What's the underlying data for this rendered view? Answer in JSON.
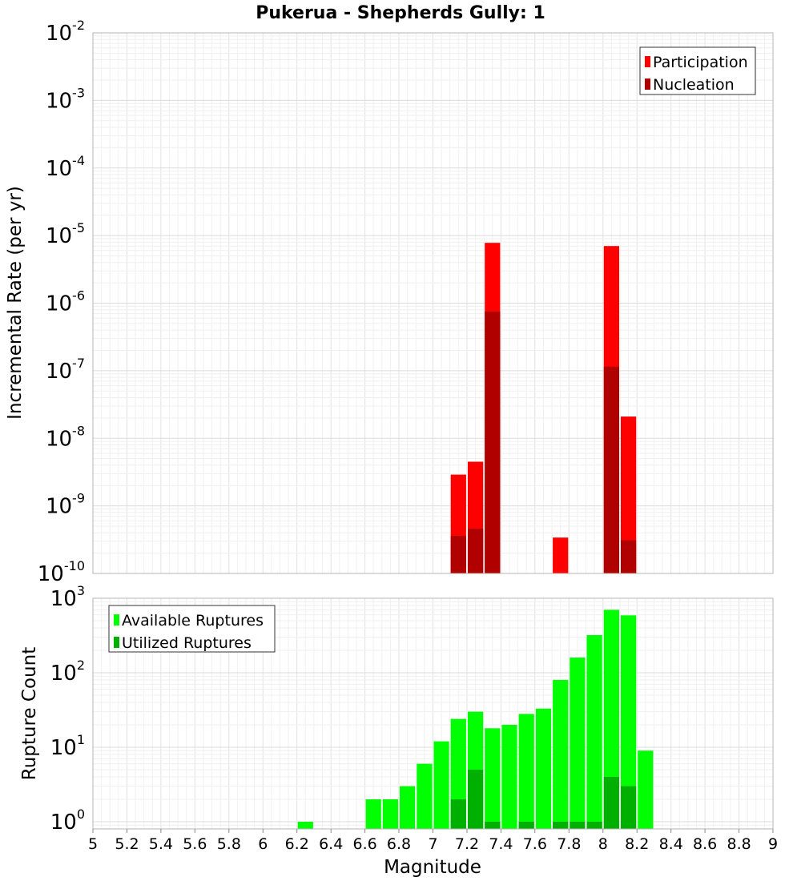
{
  "title": "Pukerua - Shepherds Gully: 1",
  "chart_data": [
    {
      "type": "bar",
      "panel": "top",
      "scale": "log",
      "ylabel": "Incremental Rate (per yr)",
      "xlabel": "",
      "xlim": [
        5,
        9
      ],
      "ylim_exponents": [
        -10,
        -2
      ],
      "grid": true,
      "legend_position": "top-right",
      "bin_width": 0.1,
      "series": [
        {
          "name": "Participation",
          "color": "#ff0000",
          "points": [
            {
              "x": 7.15,
              "y": 2.9e-09
            },
            {
              "x": 7.25,
              "y": 4.5e-09
            },
            {
              "x": 7.35,
              "y": 7.8e-06
            },
            {
              "x": 7.75,
              "y": 3.4e-10
            },
            {
              "x": 8.05,
              "y": 7e-06
            },
            {
              "x": 8.15,
              "y": 2.1e-08
            }
          ]
        },
        {
          "name": "Nucleation",
          "color": "#b00000",
          "points": [
            {
              "x": 7.15,
              "y": 3.6e-10
            },
            {
              "x": 7.25,
              "y": 4.6e-10
            },
            {
              "x": 7.35,
              "y": 7.5e-07
            },
            {
              "x": 8.05,
              "y": 1.15e-07
            },
            {
              "x": 8.15,
              "y": 3.1e-10
            }
          ]
        }
      ]
    },
    {
      "type": "bar",
      "panel": "bottom",
      "scale": "log",
      "ylabel": "Rupture Count",
      "xlabel": "Magnitude",
      "xlim": [
        5,
        9
      ],
      "ylim": [
        0.8,
        1000
      ],
      "ylim_exponents": [
        0,
        3
      ],
      "grid": true,
      "legend_position": "top-left",
      "bin_width": 0.1,
      "xticks": [
        "5",
        "5.2",
        "5.4",
        "5.6",
        "5.8",
        "6",
        "6.2",
        "6.4",
        "6.6",
        "6.8",
        "7",
        "7.2",
        "7.4",
        "7.6",
        "7.8",
        "8",
        "8.2",
        "8.4",
        "8.6",
        "8.8",
        "9"
      ],
      "series": [
        {
          "name": "Available Ruptures",
          "color": "#00ff00",
          "points": [
            {
              "x": 6.25,
              "y": 1
            },
            {
              "x": 6.65,
              "y": 2
            },
            {
              "x": 6.75,
              "y": 2
            },
            {
              "x": 6.85,
              "y": 3
            },
            {
              "x": 6.95,
              "y": 6
            },
            {
              "x": 7.05,
              "y": 12
            },
            {
              "x": 7.15,
              "y": 24
            },
            {
              "x": 7.25,
              "y": 30
            },
            {
              "x": 7.35,
              "y": 18
            },
            {
              "x": 7.45,
              "y": 20
            },
            {
              "x": 7.55,
              "y": 28
            },
            {
              "x": 7.65,
              "y": 33
            },
            {
              "x": 7.75,
              "y": 80
            },
            {
              "x": 7.85,
              "y": 160
            },
            {
              "x": 7.95,
              "y": 320
            },
            {
              "x": 8.05,
              "y": 700
            },
            {
              "x": 8.15,
              "y": 590
            },
            {
              "x": 8.25,
              "y": 9
            }
          ]
        },
        {
          "name": "Utilized Ruptures",
          "color": "#00b000",
          "points": [
            {
              "x": 7.15,
              "y": 2
            },
            {
              "x": 7.25,
              "y": 5
            },
            {
              "x": 7.35,
              "y": 1
            },
            {
              "x": 7.55,
              "y": 1
            },
            {
              "x": 7.75,
              "y": 1
            },
            {
              "x": 7.85,
              "y": 1
            },
            {
              "x": 7.95,
              "y": 1
            },
            {
              "x": 8.05,
              "y": 4
            },
            {
              "x": 8.15,
              "y": 3
            }
          ]
        }
      ]
    }
  ]
}
